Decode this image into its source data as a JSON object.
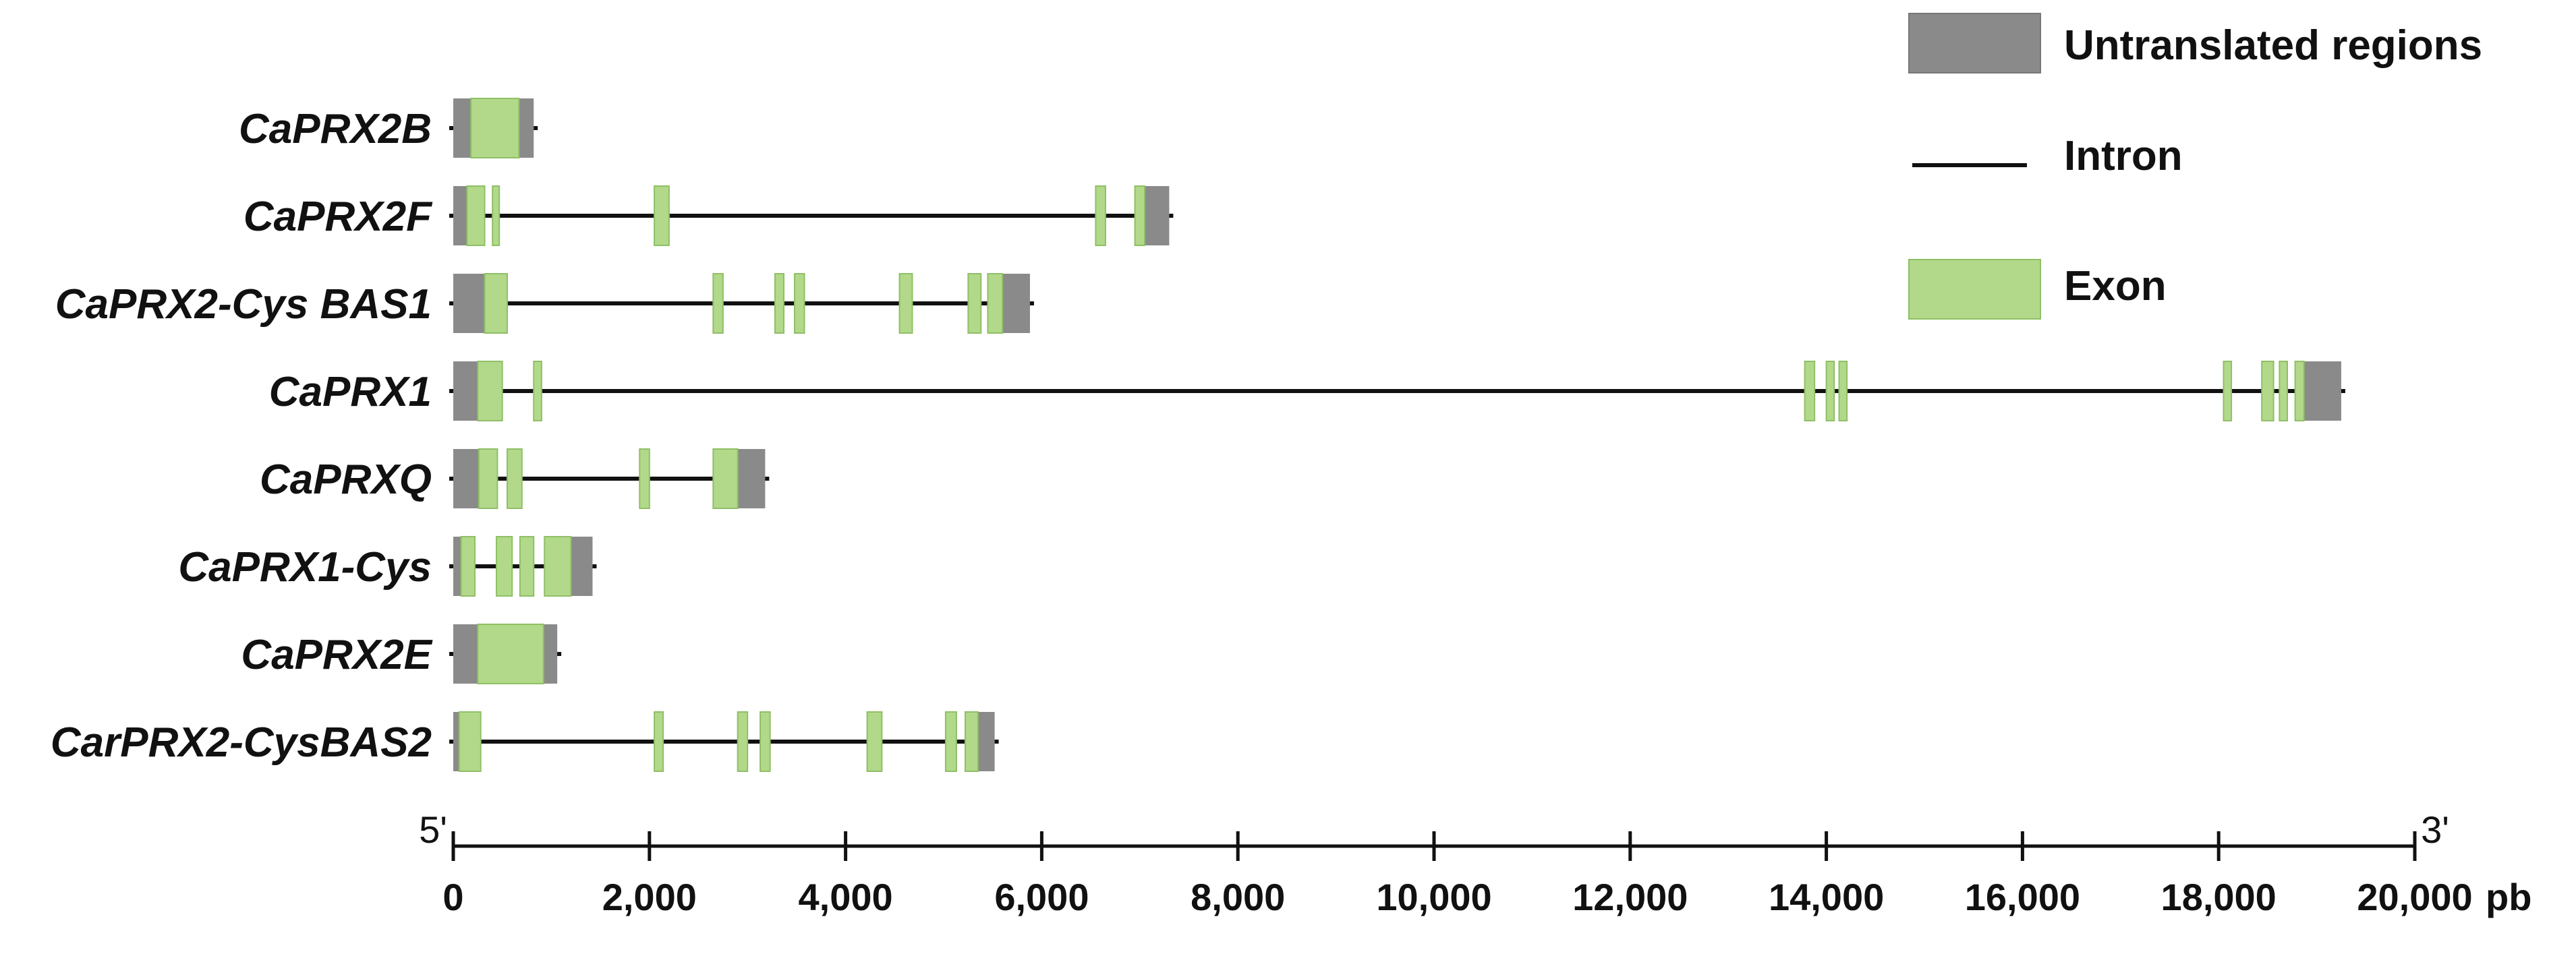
{
  "colors": {
    "utr": "#8a8a8a",
    "exon": "#b2d98a",
    "intron": "#111111",
    "text": "#111111"
  },
  "legend": {
    "utr_label": "Untranslated regions",
    "intron_label": "Intron",
    "exon_label": "Exon"
  },
  "axis": {
    "min": 0,
    "max": 20000,
    "unit_label": "pb",
    "five_prime": "5'",
    "three_prime": "3'",
    "ticks": [
      {
        "value": 0,
        "label": "0"
      },
      {
        "value": 2000,
        "label": "2,000"
      },
      {
        "value": 4000,
        "label": "4,000"
      },
      {
        "value": 6000,
        "label": "6,000"
      },
      {
        "value": 8000,
        "label": "8,000"
      },
      {
        "value": 10000,
        "label": "10,000"
      },
      {
        "value": 12000,
        "label": "12,000"
      },
      {
        "value": 14000,
        "label": "14,000"
      },
      {
        "value": 16000,
        "label": "16,000"
      },
      {
        "value": 18000,
        "label": "18,000"
      },
      {
        "value": 20000,
        "label": "20,000"
      }
    ]
  },
  "genes": [
    {
      "name": "CaPRX2B",
      "start": 0,
      "end": 820,
      "utrs": [
        [
          0,
          180
        ],
        [
          670,
          820
        ]
      ],
      "exons": [
        [
          180,
          670
        ]
      ]
    },
    {
      "name": "CaPRX2F",
      "start": 0,
      "end": 7300,
      "utrs": [
        [
          0,
          140
        ],
        [
          7050,
          7300
        ]
      ],
      "exons": [
        [
          140,
          320
        ],
        [
          400,
          450
        ],
        [
          2050,
          2200
        ],
        [
          6550,
          6650
        ],
        [
          6950,
          7050
        ]
      ]
    },
    {
      "name": "CaPRX2-Cys BAS1",
      "start": 0,
      "end": 5880,
      "utrs": [
        [
          0,
          320
        ],
        [
          5600,
          5880
        ]
      ],
      "exons": [
        [
          320,
          550
        ],
        [
          2650,
          2750
        ],
        [
          3280,
          3370
        ],
        [
          3480,
          3580
        ],
        [
          4550,
          4680
        ],
        [
          5250,
          5380
        ],
        [
          5450,
          5600
        ]
      ]
    },
    {
      "name": "CaPRX1",
      "start": 0,
      "end": 19250,
      "utrs": [
        [
          0,
          250
        ],
        [
          18870,
          19250
        ]
      ],
      "exons": [
        [
          250,
          500
        ],
        [
          820,
          900
        ],
        [
          13780,
          13880
        ],
        [
          14000,
          14080
        ],
        [
          14130,
          14210
        ],
        [
          18050,
          18130
        ],
        [
          18440,
          18560
        ],
        [
          18620,
          18700
        ],
        [
          18780,
          18870
        ]
      ]
    },
    {
      "name": "CaPRXQ",
      "start": 0,
      "end": 3180,
      "utrs": [
        [
          0,
          260
        ],
        [
          2900,
          3180
        ]
      ],
      "exons": [
        [
          260,
          450
        ],
        [
          550,
          700
        ],
        [
          1900,
          2000
        ],
        [
          2650,
          2900
        ]
      ]
    },
    {
      "name": "CaPRX1-Cys",
      "start": 0,
      "end": 1420,
      "utrs": [
        [
          0,
          80
        ],
        [
          1200,
          1420
        ]
      ],
      "exons": [
        [
          80,
          220
        ],
        [
          440,
          600
        ],
        [
          680,
          820
        ],
        [
          930,
          1200
        ]
      ]
    },
    {
      "name": "CaPRX2E",
      "start": 0,
      "end": 1060,
      "utrs": [
        [
          0,
          250
        ],
        [
          920,
          1060
        ]
      ],
      "exons": [
        [
          250,
          920
        ]
      ]
    },
    {
      "name": "CarPRX2-CysBAS2",
      "start": 0,
      "end": 5520,
      "utrs": [
        [
          0,
          60
        ],
        [
          5350,
          5520
        ]
      ],
      "exons": [
        [
          60,
          280
        ],
        [
          2050,
          2140
        ],
        [
          2900,
          3000
        ],
        [
          3130,
          3230
        ],
        [
          4220,
          4370
        ],
        [
          5020,
          5130
        ],
        [
          5220,
          5350
        ]
      ]
    }
  ]
}
